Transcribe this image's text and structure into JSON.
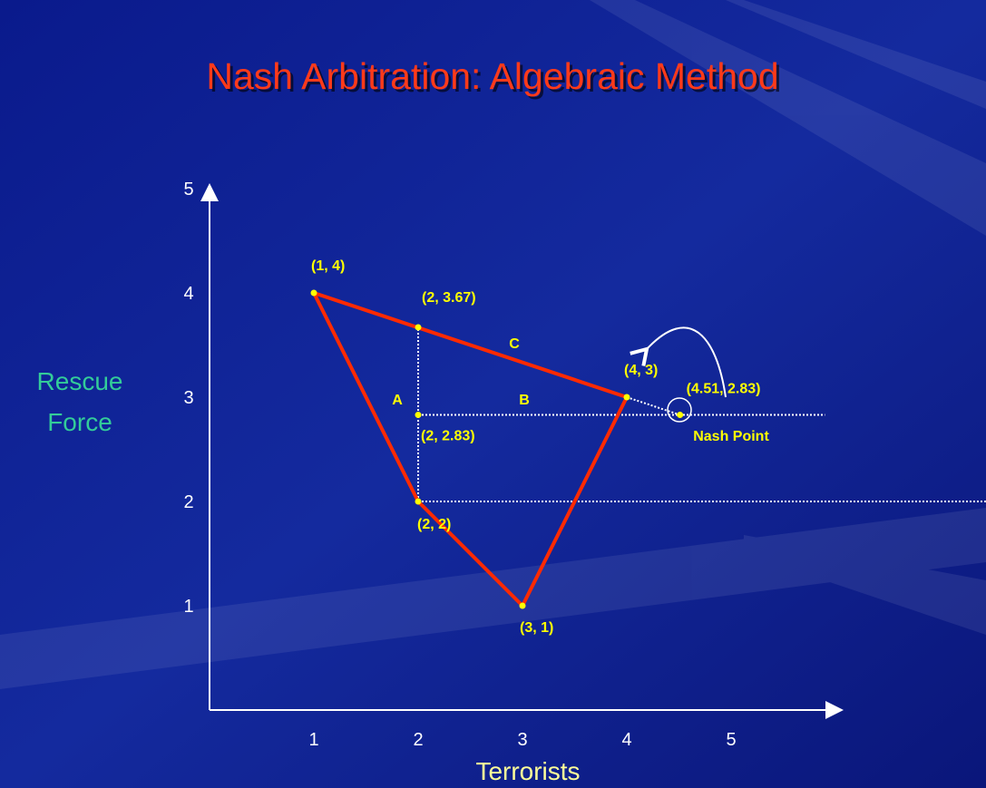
{
  "chart_data": {
    "type": "polygon",
    "title": "Nash Arbitration:  Algebraic Method",
    "xlabel": "Terrorists",
    "ylabel_lines": [
      "Rescue",
      "Force"
    ],
    "xlim": [
      0,
      6
    ],
    "ylim": [
      0,
      5
    ],
    "xticks": [
      1,
      2,
      3,
      4,
      5
    ],
    "yticks": [
      1,
      2,
      3,
      4,
      5
    ],
    "polygon": {
      "x": [
        1,
        4,
        3,
        2,
        1
      ],
      "values": [
        4,
        3,
        1,
        2,
        4
      ],
      "color": "#ff2a00"
    },
    "points": {
      "x": [
        1,
        2,
        4,
        2,
        2,
        3,
        4.51
      ],
      "values": [
        4,
        3.67,
        3,
        2.83,
        2,
        1,
        2.83
      ],
      "value_labels": [
        "(1, 4)",
        "(2, 3.67)",
        "(4, 3)",
        "(2, 2.83)",
        "(2, 2)",
        "(3, 1)",
        "(4.51, 2.83)"
      ],
      "color": "#ffff00"
    },
    "reference_lines": [
      {
        "x": [
          2,
          2
        ],
        "values": [
          2,
          3.67
        ]
      },
      {
        "x": [
          2,
          5.9
        ],
        "values": [
          2.83,
          2.83
        ]
      },
      {
        "x": [
          2,
          7.5
        ],
        "values": [
          2,
          2
        ]
      },
      {
        "x": [
          4,
          4.51
        ],
        "values": [
          3,
          2.83
        ]
      }
    ],
    "annotations": [
      "A",
      "B",
      "C",
      "Nash Point"
    ]
  }
}
